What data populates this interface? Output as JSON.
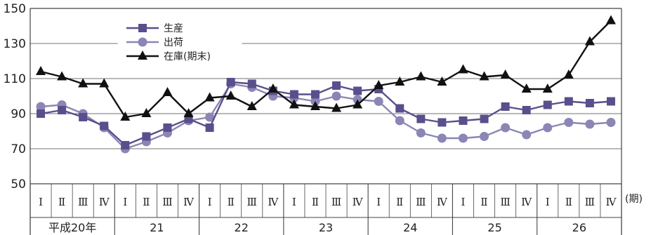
{
  "chart_data": {
    "type": "line",
    "yticks": [
      "150",
      "130",
      "110",
      "90",
      "70",
      "50"
    ],
    "ylim": [
      50,
      150
    ],
    "x_unit": "(期)",
    "quarter_labels": [
      "Ⅰ",
      "Ⅱ",
      "Ⅲ",
      "Ⅳ",
      "Ⅰ",
      "Ⅱ",
      "Ⅲ",
      "Ⅳ",
      "Ⅰ",
      "Ⅱ",
      "Ⅲ",
      "Ⅳ",
      "Ⅰ",
      "Ⅱ",
      "Ⅲ",
      "Ⅳ",
      "Ⅰ",
      "Ⅱ",
      "Ⅲ",
      "Ⅳ",
      "Ⅰ",
      "Ⅱ",
      "Ⅲ",
      "Ⅳ",
      "Ⅰ",
      "Ⅱ",
      "Ⅲ",
      "Ⅳ"
    ],
    "year_labels": [
      "平成20年",
      "21",
      "22",
      "23",
      "24",
      "25",
      "26"
    ],
    "grid": true,
    "legend_position": "top-left",
    "series": [
      {
        "name": "生産",
        "color": "#5a4f8c",
        "marker": "square",
        "values": [
          90,
          92,
          88,
          83,
          72,
          77,
          82,
          87,
          82,
          108,
          107,
          103,
          101,
          101,
          106,
          103,
          104,
          93,
          87,
          85,
          86,
          87,
          94,
          92,
          95,
          97,
          96,
          97
        ]
      },
      {
        "name": "出荷",
        "color": "#8a86b5",
        "marker": "circle",
        "values": [
          94,
          95,
          90,
          82,
          70,
          74,
          79,
          86,
          88,
          107,
          105,
          100,
          99,
          97,
          100,
          98,
          97,
          86,
          79,
          76,
          76,
          77,
          82,
          78,
          82,
          85,
          84,
          85
        ]
      },
      {
        "name": "在庫(期末)",
        "color": "#111111",
        "marker": "triangle",
        "values": [
          114,
          111,
          107,
          107,
          88,
          90,
          102,
          90,
          99,
          100,
          94,
          104,
          95,
          94,
          93,
          95,
          106,
          108,
          111,
          108,
          115,
          111,
          112,
          104,
          104,
          112,
          131,
          143
        ]
      }
    ]
  }
}
